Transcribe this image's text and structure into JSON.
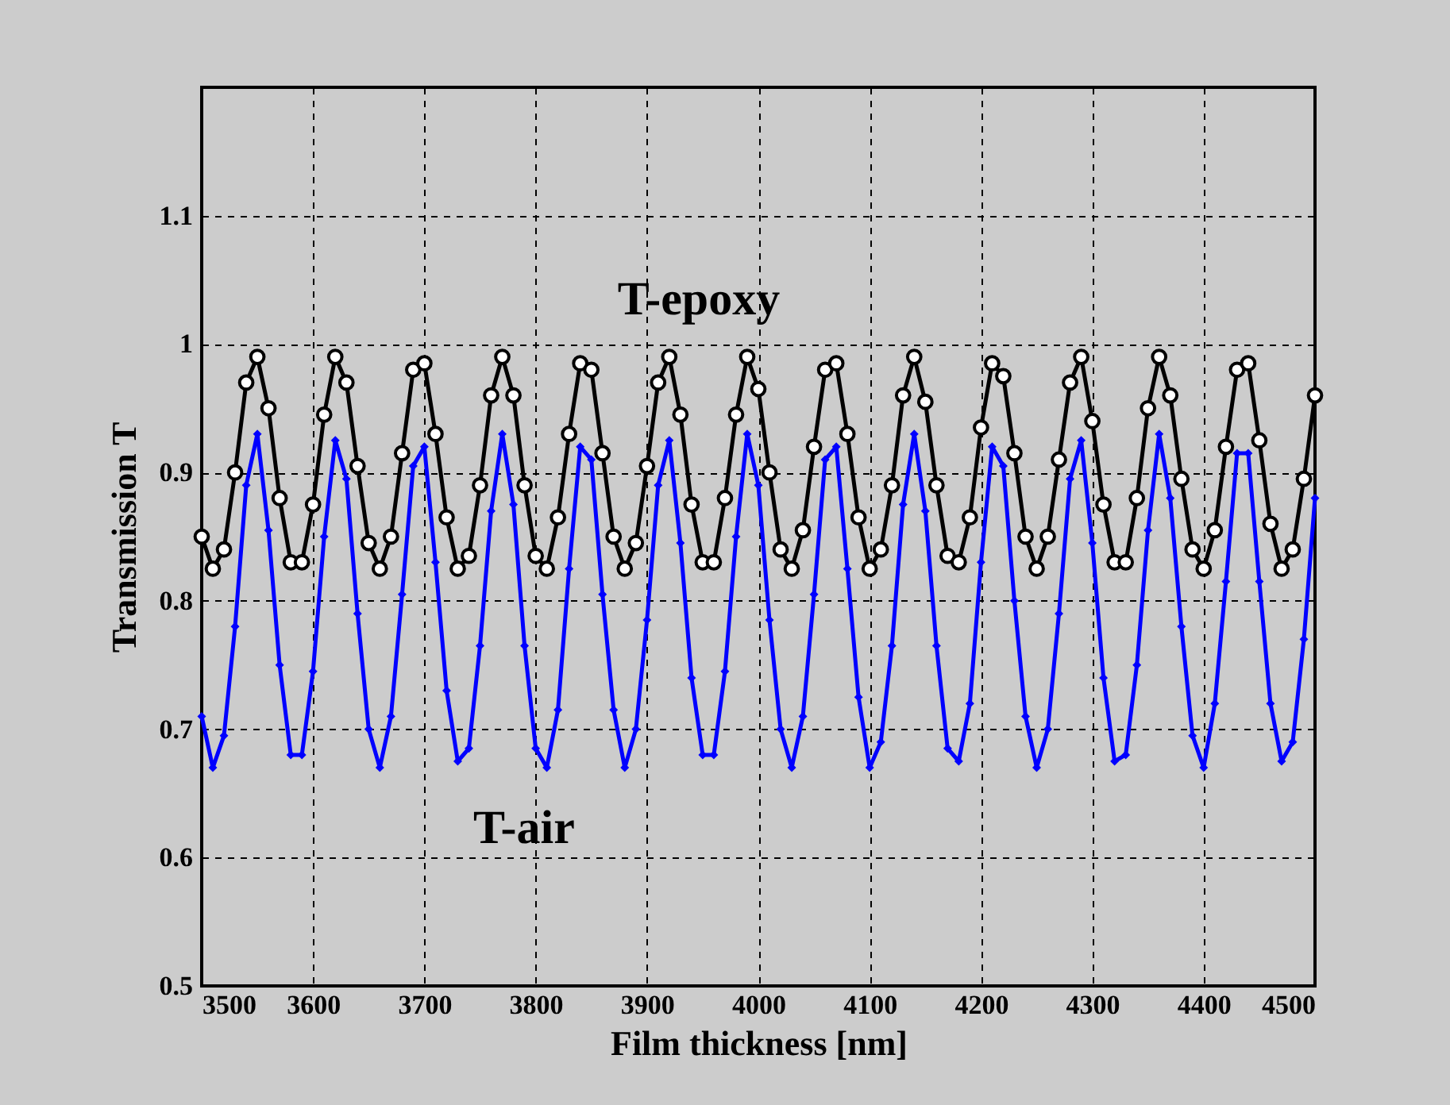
{
  "chart_data": {
    "type": "line",
    "xlabel": "Film thickness [nm]",
    "ylabel": "Transmission  T",
    "x": [
      3500,
      3510,
      3520,
      3530,
      3540,
      3550,
      3560,
      3570,
      3580,
      3590,
      3600,
      3610,
      3620,
      3630,
      3640,
      3650,
      3660,
      3670,
      3680,
      3690,
      3700,
      3710,
      3720,
      3730,
      3740,
      3750,
      3760,
      3770,
      3780,
      3790,
      3800,
      3810,
      3820,
      3830,
      3840,
      3850,
      3860,
      3870,
      3880,
      3890,
      3900,
      3910,
      3920,
      3930,
      3940,
      3950,
      3960,
      3970,
      3980,
      3990,
      4000,
      4010,
      4020,
      4030,
      4040,
      4050,
      4060,
      4070,
      4080,
      4090,
      4100,
      4110,
      4120,
      4130,
      4140,
      4150,
      4160,
      4170,
      4180,
      4190,
      4200,
      4210,
      4220,
      4230,
      4240,
      4250,
      4260,
      4270,
      4280,
      4290,
      4300,
      4310,
      4320,
      4330,
      4340,
      4350,
      4360,
      4370,
      4380,
      4390,
      4400,
      4410,
      4420,
      4430,
      4440,
      4450,
      4460,
      4470,
      4480,
      4490,
      4500
    ],
    "series": [
      {
        "color": "#000000",
        "marker": "circle",
        "values": [
          0.85,
          0.825,
          0.84,
          0.9,
          0.97,
          0.99,
          0.95,
          0.88,
          0.83,
          0.83,
          0.875,
          0.945,
          0.99,
          0.97,
          0.905,
          0.845,
          0.825,
          0.85,
          0.915,
          0.98,
          0.985,
          0.93,
          0.865,
          0.825,
          0.835,
          0.89,
          0.96,
          0.99,
          0.96,
          0.89,
          0.835,
          0.825,
          0.865,
          0.93,
          0.985,
          0.98,
          0.915,
          0.85,
          0.825,
          0.845,
          0.905,
          0.97,
          0.99,
          0.945,
          0.875,
          0.83,
          0.83,
          0.88,
          0.945,
          0.99,
          0.965,
          0.9,
          0.84,
          0.825,
          0.855,
          0.92,
          0.98,
          0.985,
          0.93,
          0.865,
          0.825,
          0.84,
          0.89,
          0.96,
          0.99,
          0.955,
          0.89,
          0.835,
          0.83,
          0.865,
          0.935,
          0.985,
          0.975,
          0.915,
          0.85,
          0.825,
          0.85,
          0.91,
          0.97,
          0.99,
          0.94,
          0.875,
          0.83,
          0.83,
          0.88,
          0.95,
          0.99,
          0.96,
          0.895,
          0.84,
          0.825,
          0.855,
          0.92,
          0.98,
          0.985,
          0.925,
          0.86,
          0.825,
          0.84,
          0.895,
          0.96
        ]
      },
      {
        "color": "#0000ff",
        "marker": "diamond",
        "values": [
          0.71,
          0.67,
          0.695,
          0.78,
          0.89,
          0.93,
          0.855,
          0.75,
          0.68,
          0.68,
          0.745,
          0.85,
          0.925,
          0.895,
          0.79,
          0.7,
          0.67,
          0.71,
          0.805,
          0.905,
          0.92,
          0.83,
          0.73,
          0.675,
          0.685,
          0.765,
          0.87,
          0.93,
          0.875,
          0.765,
          0.685,
          0.67,
          0.715,
          0.825,
          0.92,
          0.91,
          0.805,
          0.715,
          0.67,
          0.7,
          0.785,
          0.89,
          0.925,
          0.845,
          0.74,
          0.68,
          0.68,
          0.745,
          0.85,
          0.93,
          0.89,
          0.785,
          0.7,
          0.67,
          0.71,
          0.805,
          0.91,
          0.92,
          0.825,
          0.725,
          0.67,
          0.69,
          0.765,
          0.875,
          0.93,
          0.87,
          0.765,
          0.685,
          0.675,
          0.72,
          0.83,
          0.92,
          0.905,
          0.8,
          0.71,
          0.67,
          0.7,
          0.79,
          0.895,
          0.925,
          0.845,
          0.74,
          0.675,
          0.68,
          0.75,
          0.855,
          0.93,
          0.88,
          0.78,
          0.695,
          0.67,
          0.72,
          0.815,
          0.915,
          0.915,
          0.815,
          0.72,
          0.675,
          0.69,
          0.77,
          0.88
        ]
      }
    ],
    "annotations": [
      "T-epoxy",
      "T-air"
    ],
    "xlim": [
      3500,
      4500
    ],
    "xticks": [
      3500,
      3600,
      3700,
      3800,
      3900,
      4000,
      4100,
      4200,
      4300,
      4400,
      4500
    ],
    "ylim": [
      0.5,
      1.2
    ],
    "yticks": [
      0.5,
      0.6,
      0.7,
      0.8,
      0.9,
      1,
      1.1
    ],
    "grid": true,
    "line_style": "solid"
  }
}
